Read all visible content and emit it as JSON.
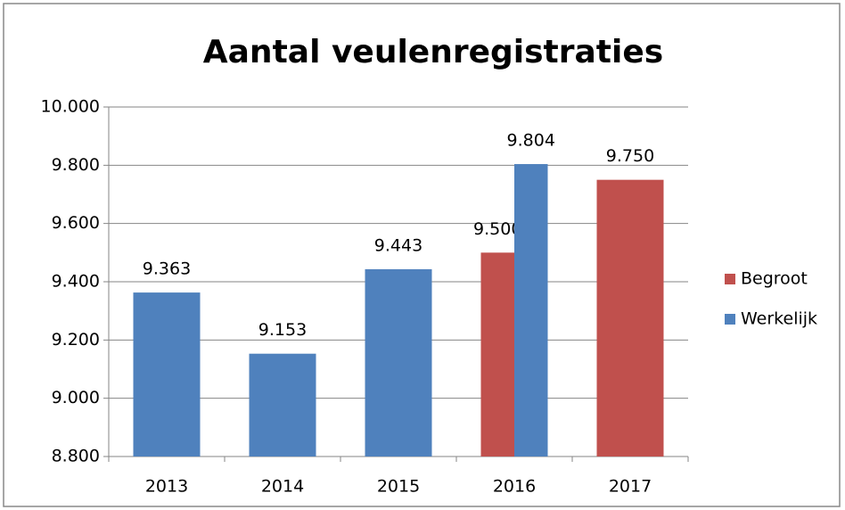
{
  "chart_data": {
    "type": "bar",
    "title": "Aantal veulenregistraties",
    "categories": [
      "2013",
      "2014",
      "2015",
      "2016",
      "2017"
    ],
    "series": [
      {
        "name": "Begroot",
        "color": "#c0504d",
        "values": [
          null,
          null,
          null,
          9500,
          9750
        ],
        "value_labels": [
          null,
          null,
          null,
          "9.500",
          "9.750"
        ]
      },
      {
        "name": "Werkelijk",
        "color": "#4f81bd",
        "values": [
          9363,
          9153,
          9443,
          9804,
          null
        ],
        "value_labels": [
          "9.363",
          "9.153",
          "9.443",
          "9.804",
          null
        ]
      }
    ],
    "ylim": [
      8800,
      10000
    ],
    "yticks": [
      {
        "value": 8800,
        "label": "8.800"
      },
      {
        "value": 9000,
        "label": "9.000"
      },
      {
        "value": 9200,
        "label": "9.200"
      },
      {
        "value": 9400,
        "label": "9.400"
      },
      {
        "value": 9600,
        "label": "9.600"
      },
      {
        "value": 9800,
        "label": "9.800"
      },
      {
        "value": 10000,
        "label": "10.000"
      }
    ],
    "grid": true,
    "legend": "right"
  }
}
